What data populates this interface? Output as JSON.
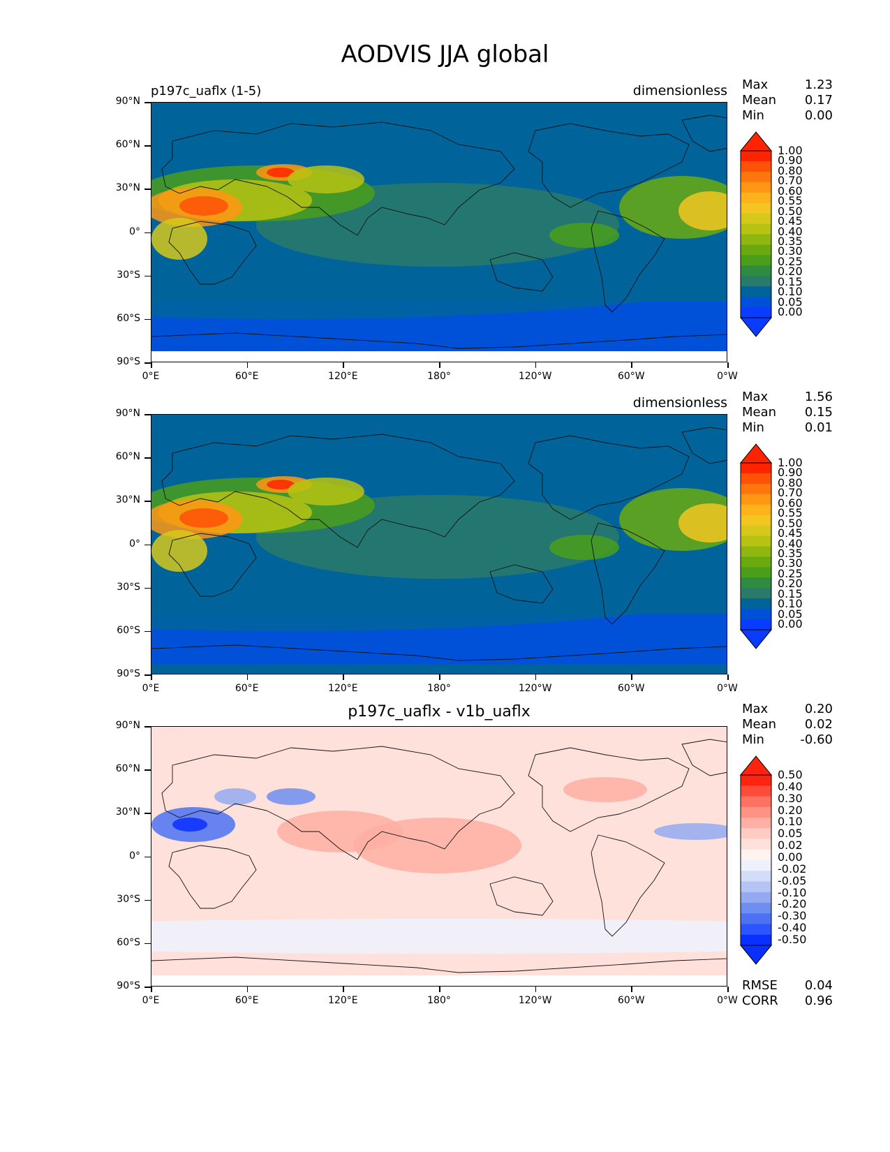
{
  "figure_title": "AODVIS JJA global",
  "lat_labels": [
    "90°N",
    "60°N",
    "30°N",
    "0°",
    "30°S",
    "60°S",
    "90°S"
  ],
  "lon_labels": [
    "0°E",
    "60°E",
    "120°E",
    "180°",
    "120°W",
    "60°W",
    "0°W"
  ],
  "panels": [
    {
      "title_left": "p197c_uaflx (1-5)",
      "title_center": "",
      "units": "dimensionless",
      "stats": {
        "max_label": "Max",
        "max": "1.23",
        "mean_label": "Mean",
        "mean": "0.17",
        "min_label": "Min",
        "min": "0.00"
      },
      "colorbar_labels": [
        "1.00",
        "0.90",
        "0.80",
        "0.70",
        "0.60",
        "0.55",
        "0.50",
        "0.45",
        "0.40",
        "0.35",
        "0.30",
        "0.25",
        "0.20",
        "0.15",
        "0.10",
        "0.05",
        "0.00"
      ],
      "extra_stats": null
    },
    {
      "title_left": "",
      "title_center": "",
      "units": "dimensionless",
      "stats": {
        "max_label": "Max",
        "max": "1.56",
        "mean_label": "Mean",
        "mean": "0.15",
        "min_label": "Min",
        "min": "0.01"
      },
      "colorbar_labels": [
        "1.00",
        "0.90",
        "0.80",
        "0.70",
        "0.60",
        "0.55",
        "0.50",
        "0.45",
        "0.40",
        "0.35",
        "0.30",
        "0.25",
        "0.20",
        "0.15",
        "0.10",
        "0.05",
        "0.00"
      ],
      "extra_stats": null
    },
    {
      "title_left": "",
      "title_center": "p197c_uaflx - v1b_uaflx",
      "units": "",
      "stats": {
        "max_label": "Max",
        "max": "0.20",
        "mean_label": "Mean",
        "mean": "0.02",
        "min_label": "Min",
        "min": "-0.60"
      },
      "colorbar_labels": [
        "0.50",
        "0.40",
        "0.30",
        "0.20",
        "0.10",
        "0.05",
        "0.02",
        "0.00",
        "-0.02",
        "-0.05",
        "-0.10",
        "-0.20",
        "-0.30",
        "-0.40",
        "-0.50"
      ],
      "extra_stats": {
        "rmse_label": "RMSE",
        "rmse": "0.04",
        "corr_label": "CORR",
        "corr": "0.96"
      }
    }
  ],
  "colors": {
    "aod_scale": [
      "#0a3cff",
      "#0050d8",
      "#00649b",
      "#2a7a6a",
      "#2e8b40",
      "#4a9e1a",
      "#6aaa10",
      "#8fb710",
      "#b7c313",
      "#d6c81a",
      "#f2c521",
      "#ffb21c",
      "#ff9614",
      "#ff760d",
      "#ff5206",
      "#ff2400"
    ],
    "diff_scale": [
      "#0a30ff",
      "#2c55ff",
      "#4c72f2",
      "#6e8ef0",
      "#94aaf0",
      "#b5c4f4",
      "#d4ddf8",
      "#eef1fc",
      "#fff3f0",
      "#ffe0da",
      "#ffcbc2",
      "#ffafa3",
      "#ff9283",
      "#ff7262",
      "#ff4b3a",
      "#ff2410"
    ]
  }
}
